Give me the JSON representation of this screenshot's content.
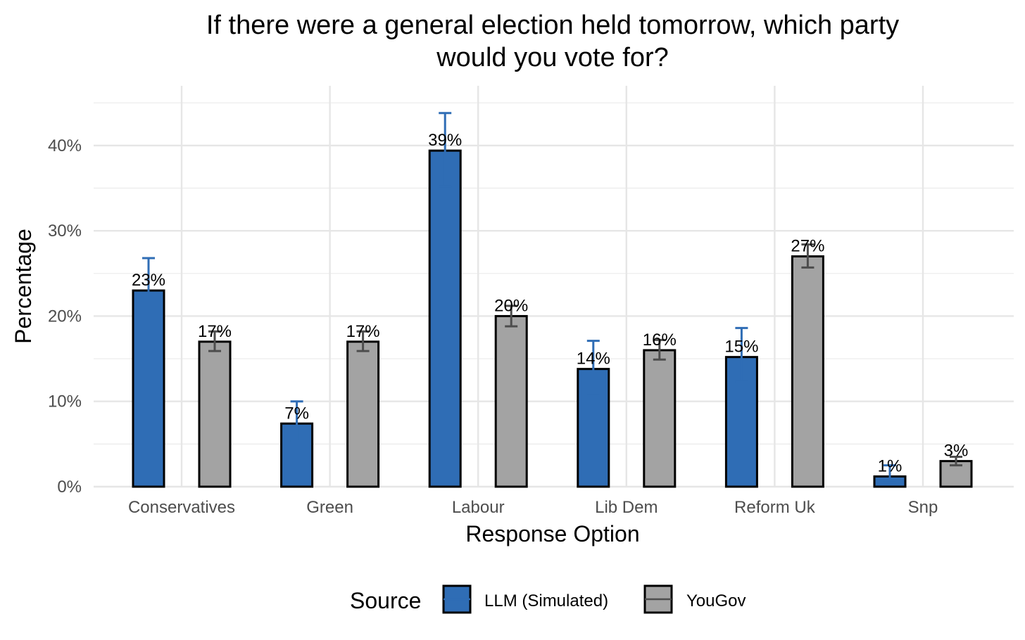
{
  "chart_data": {
    "type": "bar",
    "title_lines": [
      "If there were a general election held tomorrow, which party",
      "would you vote for?"
    ],
    "xlabel": "Response Option",
    "ylabel": "Percentage",
    "categories": [
      "Conservatives",
      "Green",
      "Labour",
      "Lib Dem",
      "Reform Uk",
      "Snp"
    ],
    "ylim": [
      0,
      47
    ],
    "yticks": [
      0,
      10,
      20,
      30,
      40
    ],
    "ytick_labels": [
      "0%",
      "10%",
      "20%",
      "30%",
      "40%"
    ],
    "grid": true,
    "series": [
      {
        "name": "LLM (Simulated)",
        "color": "#2F6DB5",
        "error_color": "#2F6DB5",
        "values": [
          23.0,
          7.4,
          39.4,
          13.8,
          15.2,
          1.2
        ],
        "error_low": [
          19.5,
          5.4,
          35.2,
          11.0,
          12.3,
          0.5
        ],
        "error_high": [
          26.8,
          10.0,
          43.8,
          17.1,
          18.6,
          2.5
        ],
        "labels": [
          "23%",
          "7%",
          "39%",
          "14%",
          "15%",
          "1%"
        ]
      },
      {
        "name": "YouGov",
        "color": "#A3A3A3",
        "error_color": "#4d4d4d",
        "values": [
          17.0,
          17.0,
          20.0,
          16.0,
          27.0,
          3.0
        ],
        "error_low": [
          15.9,
          15.9,
          18.8,
          14.9,
          25.7,
          2.5
        ],
        "error_high": [
          18.2,
          18.2,
          21.2,
          17.2,
          28.4,
          3.5
        ],
        "labels": [
          "17%",
          "17%",
          "20%",
          "16%",
          "27%",
          "3%"
        ]
      }
    ],
    "legend": {
      "title": "Source",
      "position": "bottom"
    }
  }
}
